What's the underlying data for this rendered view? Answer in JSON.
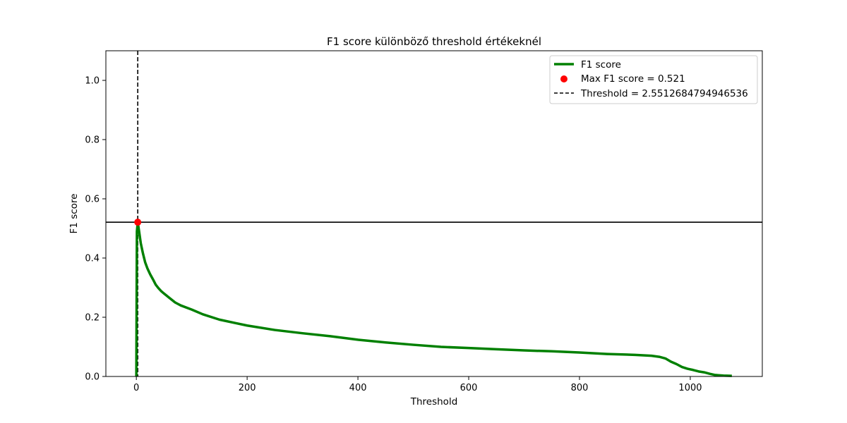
{
  "chart_data": {
    "type": "line",
    "title": "F1 score különböző threshold értékeknél",
    "xlabel": "Threshold",
    "ylabel": "F1 score",
    "xlim": [
      -55,
      1130
    ],
    "ylim": [
      0,
      1.1
    ],
    "x_ticks": [
      0,
      200,
      400,
      600,
      800,
      1000
    ],
    "y_ticks": [
      0.0,
      0.2,
      0.4,
      0.6,
      0.8,
      1.0
    ],
    "x_tick_labels": [
      "0",
      "200",
      "400",
      "600",
      "800",
      "1000"
    ],
    "y_tick_labels": [
      "0.0",
      "0.2",
      "0.4",
      "0.6",
      "0.8",
      "1.0"
    ],
    "grid": false,
    "legend_position": "top-right",
    "series": [
      {
        "name": "F1 score",
        "color": "#008000",
        "x": [
          0,
          1,
          2.55,
          5,
          8,
          12,
          16,
          20,
          25,
          30,
          35,
          40,
          45,
          50,
          60,
          70,
          80,
          100,
          120,
          150,
          180,
          200,
          250,
          300,
          350,
          400,
          450,
          500,
          550,
          600,
          650,
          700,
          750,
          800,
          850,
          900,
          930,
          945,
          955,
          965,
          975,
          985,
          995,
          1005,
          1015,
          1025,
          1035,
          1045,
          1060,
          1075
        ],
        "y": [
          0.0,
          0.49,
          0.521,
          0.49,
          0.45,
          0.415,
          0.385,
          0.365,
          0.345,
          0.328,
          0.31,
          0.298,
          0.288,
          0.28,
          0.265,
          0.25,
          0.24,
          0.226,
          0.21,
          0.192,
          0.18,
          0.172,
          0.157,
          0.146,
          0.136,
          0.124,
          0.115,
          0.107,
          0.1,
          0.096,
          0.092,
          0.088,
          0.085,
          0.081,
          0.076,
          0.073,
          0.07,
          0.066,
          0.061,
          0.05,
          0.042,
          0.032,
          0.026,
          0.022,
          0.017,
          0.014,
          0.009,
          0.005,
          0.003,
          0.002
        ]
      }
    ],
    "max_point": {
      "label": "Max F1 score = 0.521",
      "x": 2.5512684794946536,
      "y": 0.521,
      "color": "#ff0000"
    },
    "threshold_line": {
      "label": "Threshold = 2.5512684794946536",
      "x": 2.5512684794946536,
      "color": "#000000"
    },
    "hline": {
      "y": 0.521,
      "color": "#000000"
    }
  }
}
